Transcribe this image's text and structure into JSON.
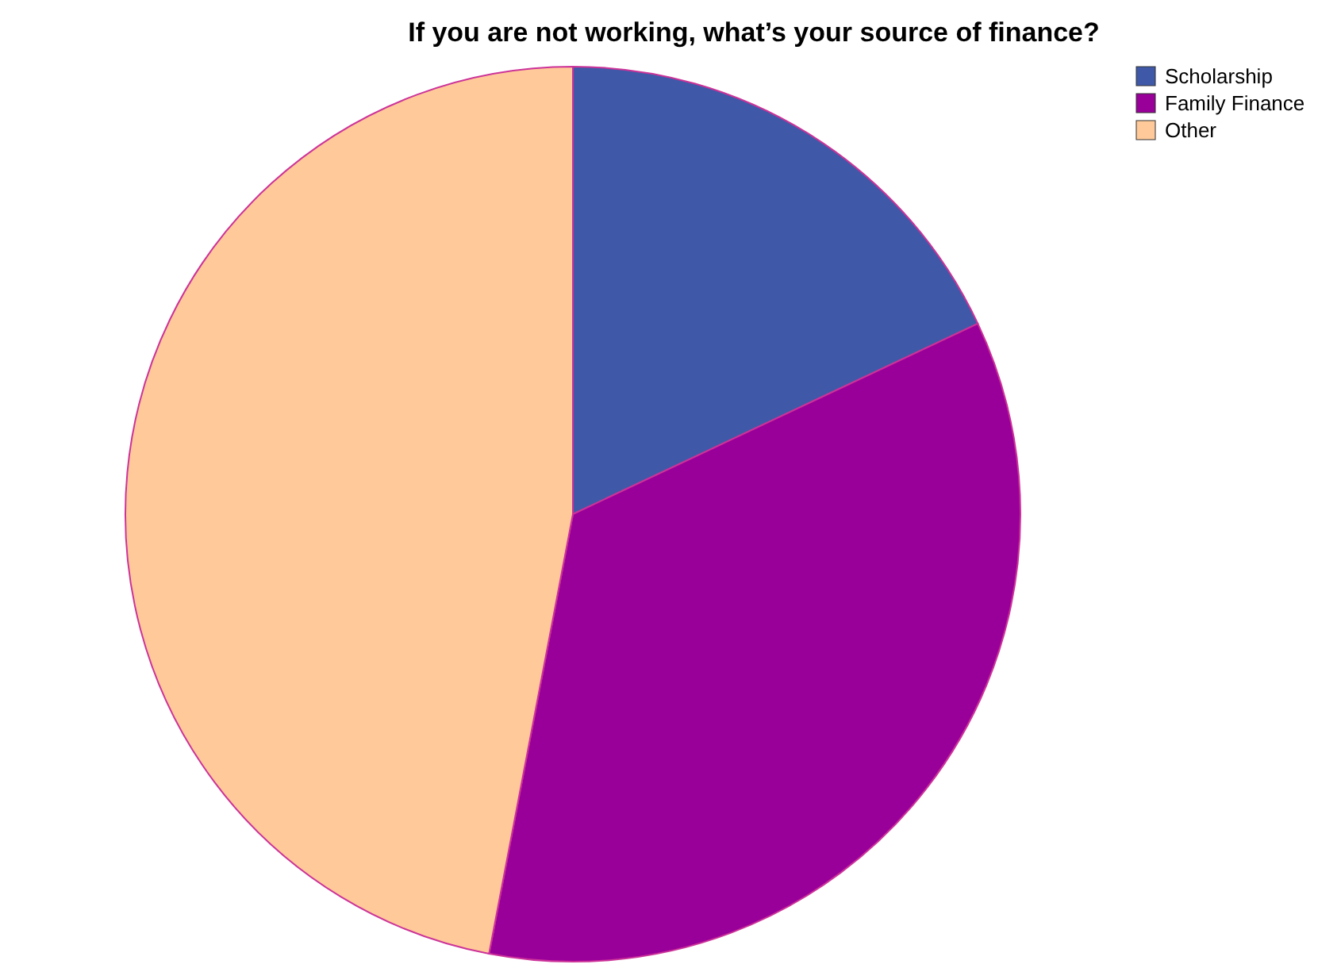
{
  "chart_data": {
    "type": "pie",
    "title": "If you are not working, what’s your source of finance?",
    "categories": [
      "Scholarship",
      "Family Finance",
      "Other"
    ],
    "values": [
      18,
      35,
      47
    ],
    "colors": [
      "#3f59a8",
      "#990099",
      "#ffc999"
    ],
    "legend": "top right"
  }
}
